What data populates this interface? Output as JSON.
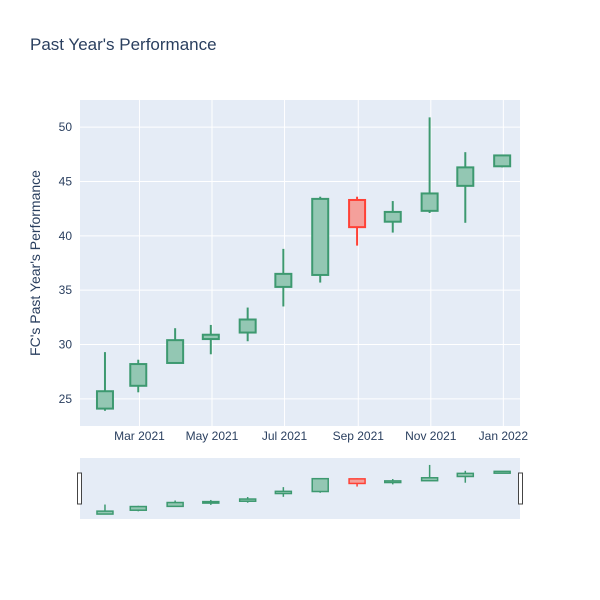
{
  "chart_data": {
    "type": "candlestick",
    "title": "Past Year's Performance",
    "xlabel": "",
    "ylabel": "FC's Past Year's Performance",
    "x_ticks": [
      "Mar 2021",
      "May 2021",
      "Jul 2021",
      "Sep 2021",
      "Nov 2021",
      "Jan 2022"
    ],
    "y_ticks": [
      25,
      30,
      35,
      40,
      45,
      50
    ],
    "ylim": [
      22.5,
      52.5
    ],
    "xlim": [
      "2021-01-10",
      "2022-01-15"
    ],
    "grid": true,
    "range_slider": true,
    "colors": {
      "increasing_line": "#3d9970",
      "increasing_fill": "#93c7b3",
      "decreasing_line": "#ff4136",
      "decreasing_fill": "#f4a09b",
      "plot_bg": "#e5ecf6",
      "grid": "#ffffff",
      "text": "#2a3f5f"
    },
    "candles": [
      {
        "date": "2021-01-31",
        "open": 24.1,
        "high": 29.3,
        "low": 23.9,
        "close": 25.7
      },
      {
        "date": "2021-02-28",
        "open": 26.2,
        "high": 28.6,
        "low": 25.6,
        "close": 28.2
      },
      {
        "date": "2021-03-31",
        "open": 28.3,
        "high": 31.5,
        "low": 28.3,
        "close": 30.4
      },
      {
        "date": "2021-04-30",
        "open": 30.5,
        "high": 31.8,
        "low": 29.1,
        "close": 30.9
      },
      {
        "date": "2021-05-31",
        "open": 31.1,
        "high": 33.4,
        "low": 30.3,
        "close": 32.3
      },
      {
        "date": "2021-06-30",
        "open": 35.3,
        "high": 38.8,
        "low": 33.5,
        "close": 36.5
      },
      {
        "date": "2021-07-31",
        "open": 36.4,
        "high": 43.6,
        "low": 35.7,
        "close": 43.4
      },
      {
        "date": "2021-08-31",
        "open": 43.3,
        "high": 43.6,
        "low": 39.1,
        "close": 40.8
      },
      {
        "date": "2021-09-30",
        "open": 41.3,
        "high": 43.2,
        "low": 40.3,
        "close": 42.2
      },
      {
        "date": "2021-10-31",
        "open": 42.3,
        "high": 50.9,
        "low": 42.1,
        "close": 43.9
      },
      {
        "date": "2021-11-30",
        "open": 44.6,
        "high": 47.7,
        "low": 41.2,
        "close": 46.3
      },
      {
        "date": "2021-12-31",
        "open": 46.4,
        "high": 47.4,
        "low": 46.3,
        "close": 47.4
      }
    ]
  }
}
